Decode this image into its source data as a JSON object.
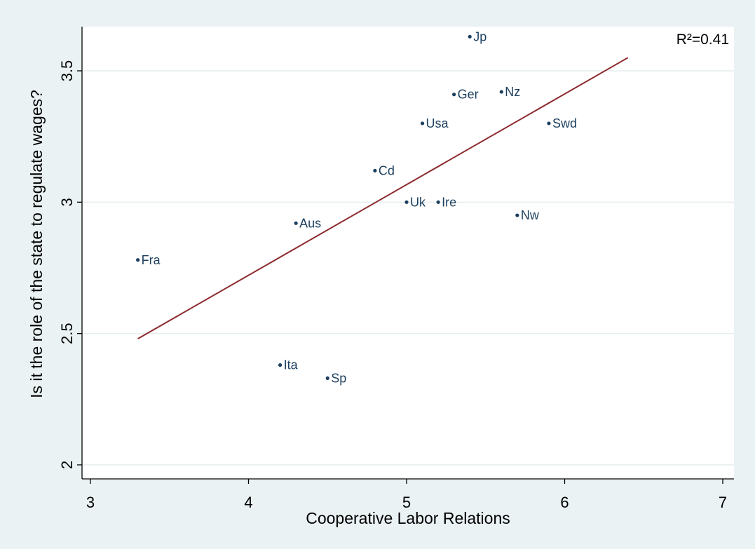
{
  "chart_data": {
    "type": "scatter",
    "title": "",
    "xlabel": "Cooperative Labor Relations",
    "ylabel": "Is it the role of the state to regulate wages?",
    "xlim": [
      3,
      7
    ],
    "ylim": [
      2,
      3.6
    ],
    "xticks": [
      "3",
      "4",
      "5",
      "6",
      "7"
    ],
    "yticks": [
      "2",
      "2.5",
      "3",
      "3.5"
    ],
    "grid": "horizontal",
    "annotation": "R²=0.41",
    "points": [
      {
        "label": "Jp",
        "x": 5.4,
        "y": 3.63
      },
      {
        "label": "Nz",
        "x": 5.6,
        "y": 3.42
      },
      {
        "label": "Ger",
        "x": 5.3,
        "y": 3.41
      },
      {
        "label": "Usa",
        "x": 5.1,
        "y": 3.3
      },
      {
        "label": "Swd",
        "x": 5.9,
        "y": 3.3
      },
      {
        "label": "Cd",
        "x": 4.8,
        "y": 3.12
      },
      {
        "label": "Uk",
        "x": 5.0,
        "y": 3.0
      },
      {
        "label": "Ire",
        "x": 5.2,
        "y": 3.0
      },
      {
        "label": "Nw",
        "x": 5.7,
        "y": 2.95
      },
      {
        "label": "Aus",
        "x": 4.3,
        "y": 2.92
      },
      {
        "label": "Fra",
        "x": 3.3,
        "y": 2.78
      },
      {
        "label": "Ita",
        "x": 4.2,
        "y": 2.38
      },
      {
        "label": "Sp",
        "x": 4.5,
        "y": 2.33
      }
    ],
    "fit_line": {
      "x": [
        3.3,
        6.4
      ],
      "y": [
        2.48,
        3.55
      ]
    }
  },
  "colors": {
    "background": "#eaf2f3",
    "plot_area": "#ffffff",
    "marker": "#1c3f5f",
    "fit_line": "#8c2a2e",
    "grid": "#e6eeee"
  }
}
